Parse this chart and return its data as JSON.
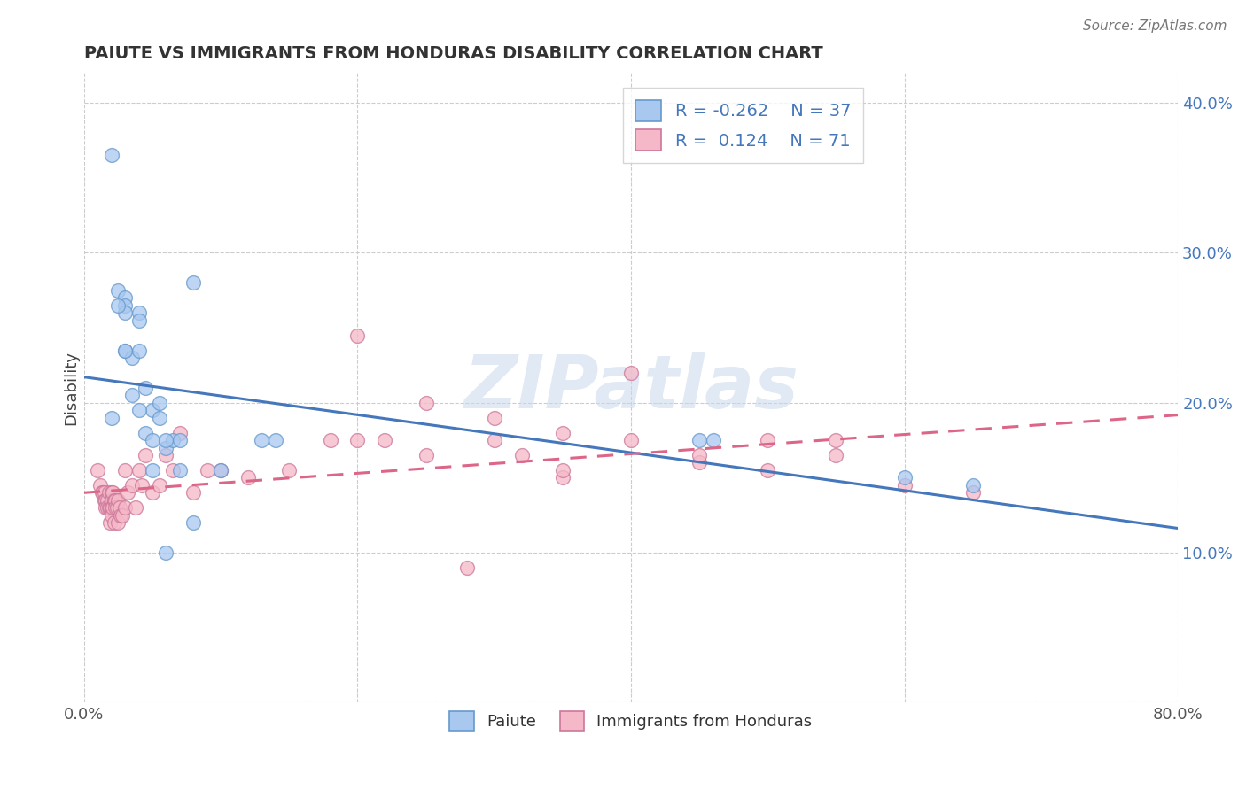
{
  "title": "PAIUTE VS IMMIGRANTS FROM HONDURAS DISABILITY CORRELATION CHART",
  "source": "Source: ZipAtlas.com",
  "ylabel": "Disability",
  "xlim": [
    0.0,
    0.8
  ],
  "ylim": [
    0.0,
    0.42
  ],
  "watermark": "ZIPatlas",
  "blue_color": "#a8c8f0",
  "pink_color": "#f5b8c8",
  "blue_edge_color": "#6699cc",
  "pink_edge_color": "#cc7799",
  "blue_line_color": "#4477bb",
  "pink_line_color": "#dd6688",
  "paiute_x": [
    0.02,
    0.025,
    0.03,
    0.03,
    0.03,
    0.035,
    0.04,
    0.04,
    0.045,
    0.05,
    0.055,
    0.06,
    0.065,
    0.07,
    0.03,
    0.035,
    0.04,
    0.045,
    0.05,
    0.055,
    0.06,
    0.08,
    0.1,
    0.13,
    0.14,
    0.45,
    0.46,
    0.6,
    0.65,
    0.02,
    0.025,
    0.03,
    0.04,
    0.05,
    0.06,
    0.07,
    0.08
  ],
  "paiute_y": [
    0.365,
    0.275,
    0.27,
    0.265,
    0.235,
    0.23,
    0.26,
    0.255,
    0.21,
    0.195,
    0.2,
    0.17,
    0.175,
    0.175,
    0.26,
    0.205,
    0.235,
    0.18,
    0.175,
    0.19,
    0.1,
    0.28,
    0.155,
    0.175,
    0.175,
    0.175,
    0.175,
    0.15,
    0.145,
    0.19,
    0.265,
    0.235,
    0.195,
    0.155,
    0.175,
    0.155,
    0.12
  ],
  "honduras_x": [
    0.01,
    0.012,
    0.013,
    0.014,
    0.015,
    0.015,
    0.016,
    0.016,
    0.017,
    0.017,
    0.018,
    0.018,
    0.019,
    0.019,
    0.02,
    0.02,
    0.02,
    0.02,
    0.021,
    0.021,
    0.022,
    0.022,
    0.023,
    0.023,
    0.024,
    0.025,
    0.025,
    0.026,
    0.027,
    0.028,
    0.03,
    0.03,
    0.032,
    0.035,
    0.038,
    0.04,
    0.042,
    0.045,
    0.05,
    0.055,
    0.06,
    0.065,
    0.07,
    0.08,
    0.09,
    0.1,
    0.12,
    0.15,
    0.18,
    0.2,
    0.22,
    0.25,
    0.28,
    0.3,
    0.32,
    0.35,
    0.4,
    0.45,
    0.5,
    0.55,
    0.6,
    0.65,
    0.5,
    0.4,
    0.3,
    0.2,
    0.35,
    0.25,
    0.45,
    0.35,
    0.55
  ],
  "honduras_y": [
    0.155,
    0.145,
    0.14,
    0.14,
    0.14,
    0.135,
    0.135,
    0.13,
    0.135,
    0.13,
    0.14,
    0.13,
    0.13,
    0.12,
    0.14,
    0.135,
    0.13,
    0.125,
    0.14,
    0.13,
    0.135,
    0.12,
    0.135,
    0.13,
    0.13,
    0.135,
    0.12,
    0.13,
    0.125,
    0.125,
    0.155,
    0.13,
    0.14,
    0.145,
    0.13,
    0.155,
    0.145,
    0.165,
    0.14,
    0.145,
    0.165,
    0.155,
    0.18,
    0.14,
    0.155,
    0.155,
    0.15,
    0.155,
    0.175,
    0.175,
    0.175,
    0.165,
    0.09,
    0.175,
    0.165,
    0.15,
    0.175,
    0.16,
    0.155,
    0.165,
    0.145,
    0.14,
    0.175,
    0.22,
    0.19,
    0.245,
    0.18,
    0.2,
    0.165,
    0.155,
    0.175
  ]
}
